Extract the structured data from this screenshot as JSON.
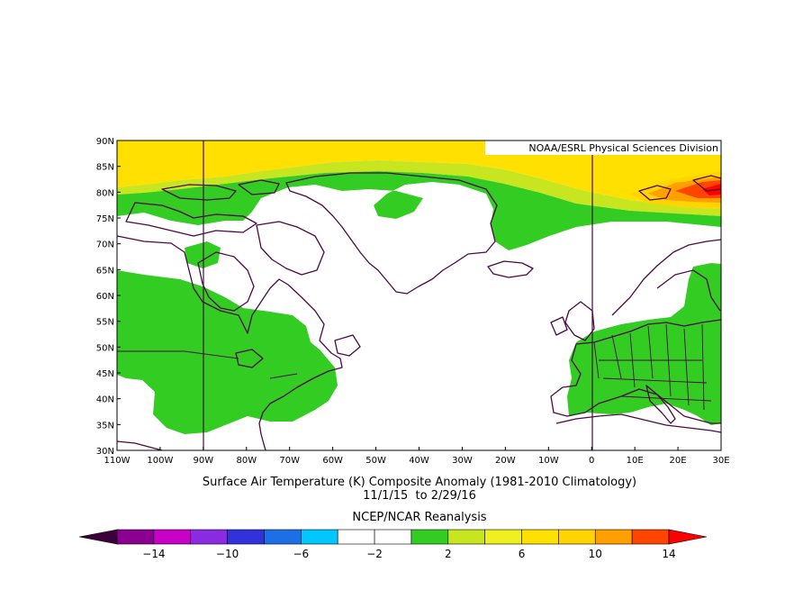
{
  "map": {
    "credit": "NOAA/ESRL Physical Sciences Division",
    "lat_ticks": [
      "90N",
      "85N",
      "80N",
      "75N",
      "70N",
      "65N",
      "60N",
      "55N",
      "50N",
      "45N",
      "40N",
      "35N",
      "30N"
    ],
    "lon_ticks": [
      "110W",
      "100W",
      "90W",
      "80W",
      "70W",
      "60W",
      "50W",
      "40W",
      "30W",
      "20W",
      "10W",
      "0",
      "10E",
      "20E",
      "30E"
    ],
    "extent": {
      "lon_min": -110,
      "lon_max": 30,
      "lat_min": 30,
      "lat_max": 90
    },
    "meridian_lines_lon": [
      -90,
      0
    ]
  },
  "caption": {
    "line1": "Surface Air Temperature (K) Composite Anomaly (1981-2010 Climatology)",
    "line2": "11/1/15  to 2/29/16",
    "line3": "NCEP/NCAR Reanalysis"
  },
  "colorbar": {
    "labels": [
      "-14",
      "-10",
      "-6",
      "-2",
      "2",
      "6",
      "10",
      "14"
    ],
    "colors": [
      "#3b0038",
      "#8a0090",
      "#c800c8",
      "#8a2be2",
      "#3232dc",
      "#1e6ee6",
      "#00c8ff",
      "#ffffff",
      "#ffffff",
      "#33cc22",
      "#c8e620",
      "#f0f020",
      "#ffe000",
      "#ffd400",
      "#ffa000",
      "#ff4500",
      "#ff0000"
    ]
  },
  "colors": {
    "green": "#33cc22",
    "yellow_green": "#c8e620",
    "yellow": "#ffe000",
    "gold": "#ffd400",
    "orange": "#ffa000",
    "red_orange": "#ff4500",
    "red": "#ff0000",
    "coast": "#4a0a44"
  }
}
